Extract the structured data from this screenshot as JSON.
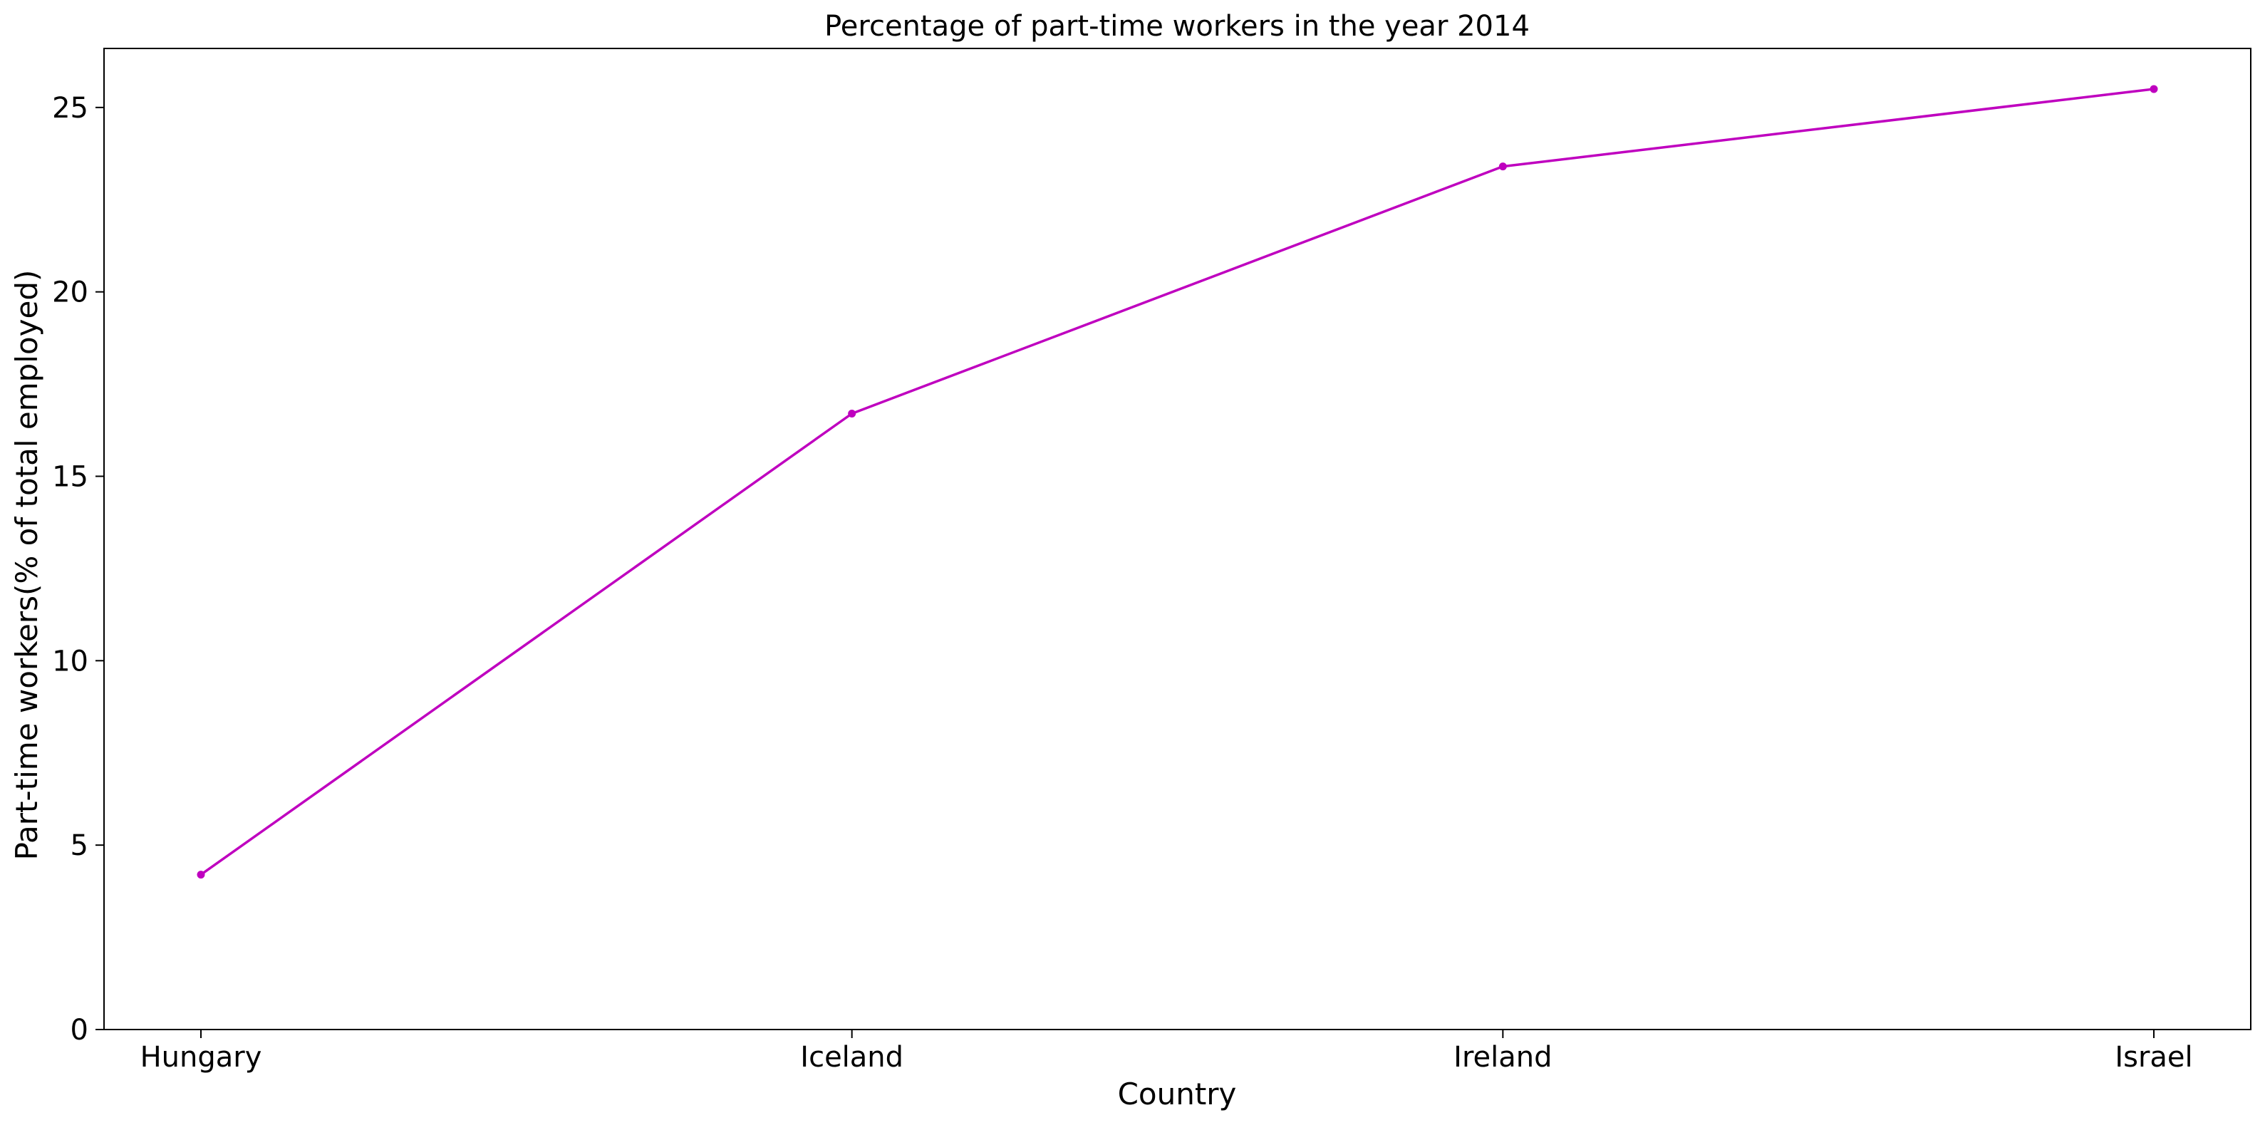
{
  "chart_data": {
    "type": "line",
    "title": "Percentage of part-time workers in the year 2014",
    "xlabel": "Country",
    "ylabel": "Part-time workers(% of total employed)",
    "categories": [
      "Hungary",
      "Iceland",
      "Ireland",
      "Israel"
    ],
    "series": [
      {
        "values": [
          4.2,
          16.7,
          23.4,
          25.5
        ],
        "color": "#bf00bf"
      }
    ],
    "ylim": [
      0,
      26.6
    ],
    "yticks": [
      0,
      5,
      10,
      15,
      20,
      25
    ],
    "grid": false,
    "legend": "none"
  }
}
